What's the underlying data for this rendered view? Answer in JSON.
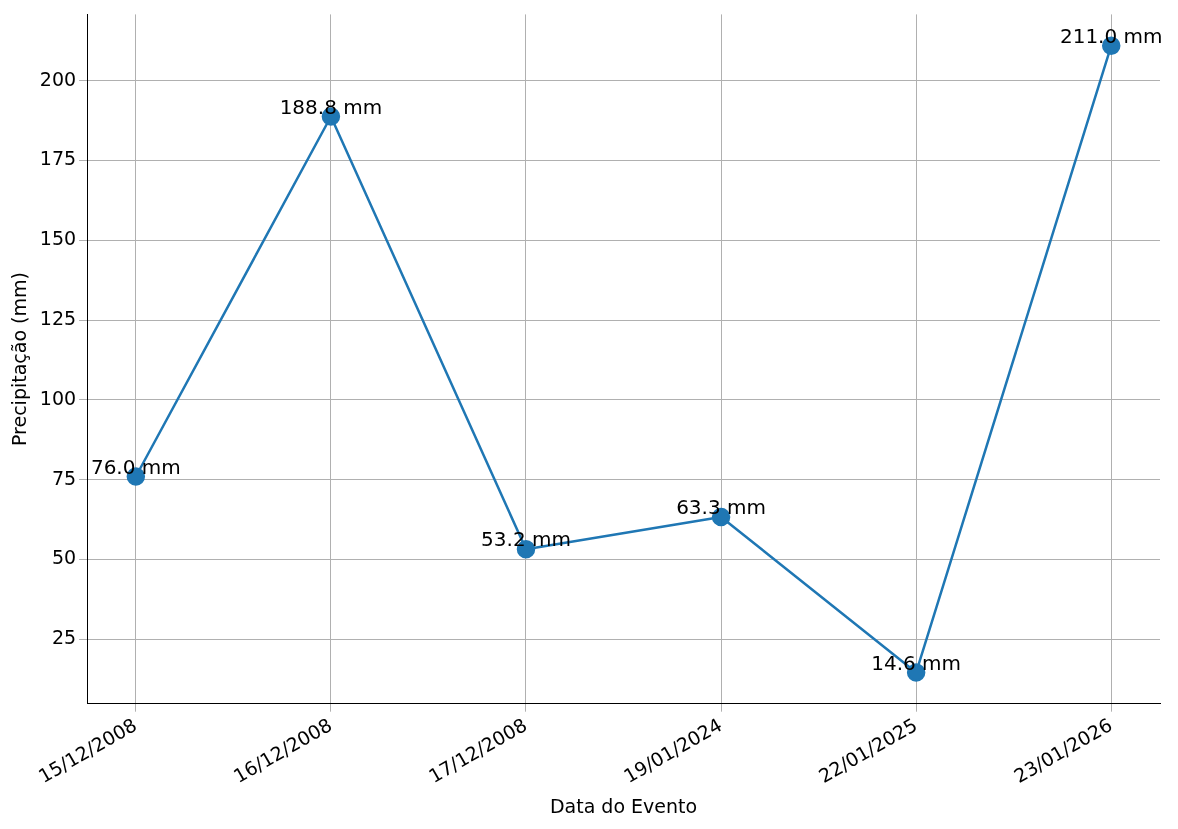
{
  "chart_data": {
    "type": "line",
    "xlabel": "Data do Evento",
    "ylabel": "Precipitação (mm)",
    "categories": [
      "15/12/2008",
      "16/12/2008",
      "17/12/2008",
      "19/01/2024",
      "22/01/2025",
      "23/01/2026"
    ],
    "series": [
      {
        "color": "#1f77b4",
        "values": [
          76.0,
          188.8,
          53.2,
          63.3,
          14.6,
          211.0
        ],
        "value_labels": [
          "76.0 mm",
          "188.8 mm",
          "53.2 mm",
          "63.3 mm",
          "14.6 mm",
          "211.0 mm"
        ]
      }
    ],
    "ylim": [
      4.8,
      220.8
    ],
    "yticks": [
      25,
      50,
      75,
      100,
      125,
      150,
      175,
      200
    ],
    "grid": true,
    "legend": false,
    "marker": "circle",
    "line_style": "solid"
  }
}
